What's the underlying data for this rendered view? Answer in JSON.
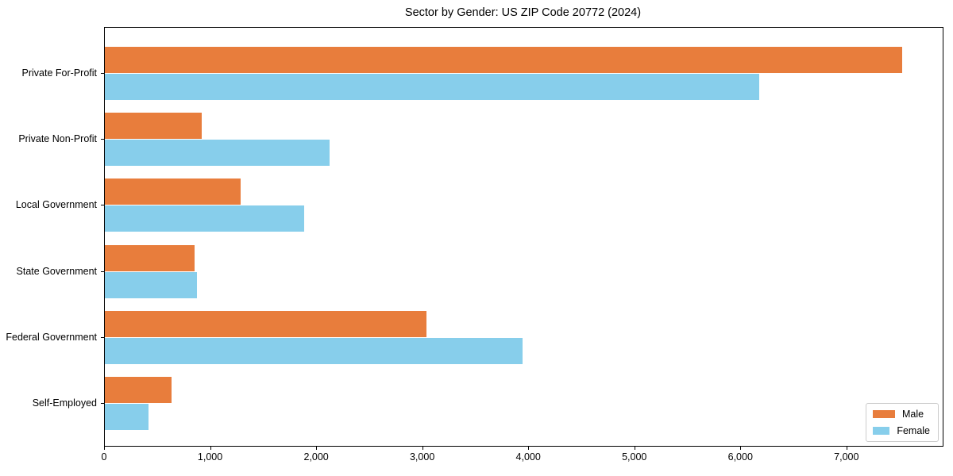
{
  "window": {
    "title": "Sector by Gender: US ZIP Code 20772 (2024)"
  },
  "chart_data": {
    "type": "bar",
    "orientation": "horizontal",
    "title": "Sector by Gender: US ZIP Code 20772 (2024)",
    "categories": [
      "Private For-Profit",
      "Private Non-Profit",
      "Local Government",
      "State Government",
      "Federal Government",
      "Self-Employed"
    ],
    "series": [
      {
        "name": "Male",
        "color": "#e87d3c",
        "values": [
          7520,
          910,
          1280,
          845,
          3030,
          630
        ]
      },
      {
        "name": "Female",
        "color": "#87ceeb",
        "values": [
          6170,
          2120,
          1880,
          865,
          3940,
          410
        ]
      }
    ],
    "xlabel": "",
    "ylabel": "",
    "xlim": [
      0,
      7900
    ],
    "xticks": {
      "values": [
        0,
        1000,
        2000,
        3000,
        4000,
        5000,
        6000,
        7000
      ],
      "labels": [
        "0",
        "1,000",
        "2,000",
        "3,000",
        "4,000",
        "5,000",
        "6,000",
        "7,000"
      ]
    },
    "grid": false,
    "legend_position": "lower right"
  }
}
